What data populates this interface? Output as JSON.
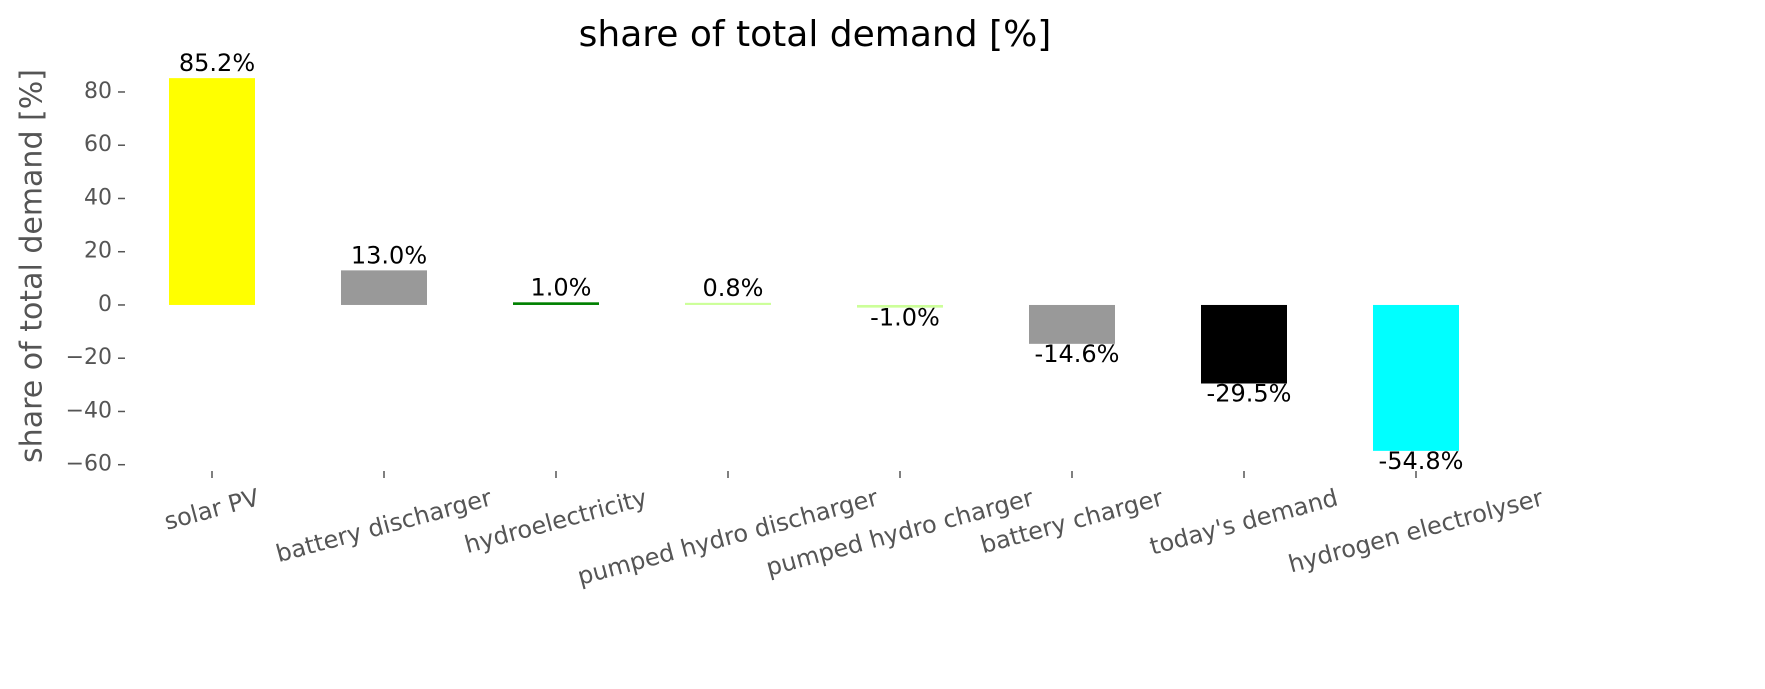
{
  "chart_data": {
    "type": "bar",
    "title": "share of total demand [%]",
    "y_label": "share of total demand [%]",
    "categories": [
      "solar PV",
      "battery discharger",
      "hydroelectricity",
      "pumped hydro discharger",
      "pumped hydro charger",
      "battery charger",
      "today's demand",
      "hydrogen electrolyser"
    ],
    "values": [
      85.2,
      13.0,
      1.0,
      0.8,
      -1.0,
      -14.6,
      -29.5,
      -54.8
    ],
    "value_labels": [
      "85.2%",
      "13.0%",
      "1.0%",
      "0.8%",
      "-1.0%",
      "-14.6%",
      "-29.5%",
      "-54.8%"
    ],
    "colors": [
      "#ffff00",
      "#999999",
      "#008000",
      "#ccff99",
      "#ccff99",
      "#999999",
      "#000000",
      "#00ffff"
    ],
    "ylim": [
      -61.8,
      92.2
    ],
    "yticks": [
      {
        "value": -60,
        "label": "−60"
      },
      {
        "value": -40,
        "label": "−40"
      },
      {
        "value": -20,
        "label": "−20"
      },
      0,
      20,
      40,
      60,
      80
    ],
    "grid": false
  }
}
